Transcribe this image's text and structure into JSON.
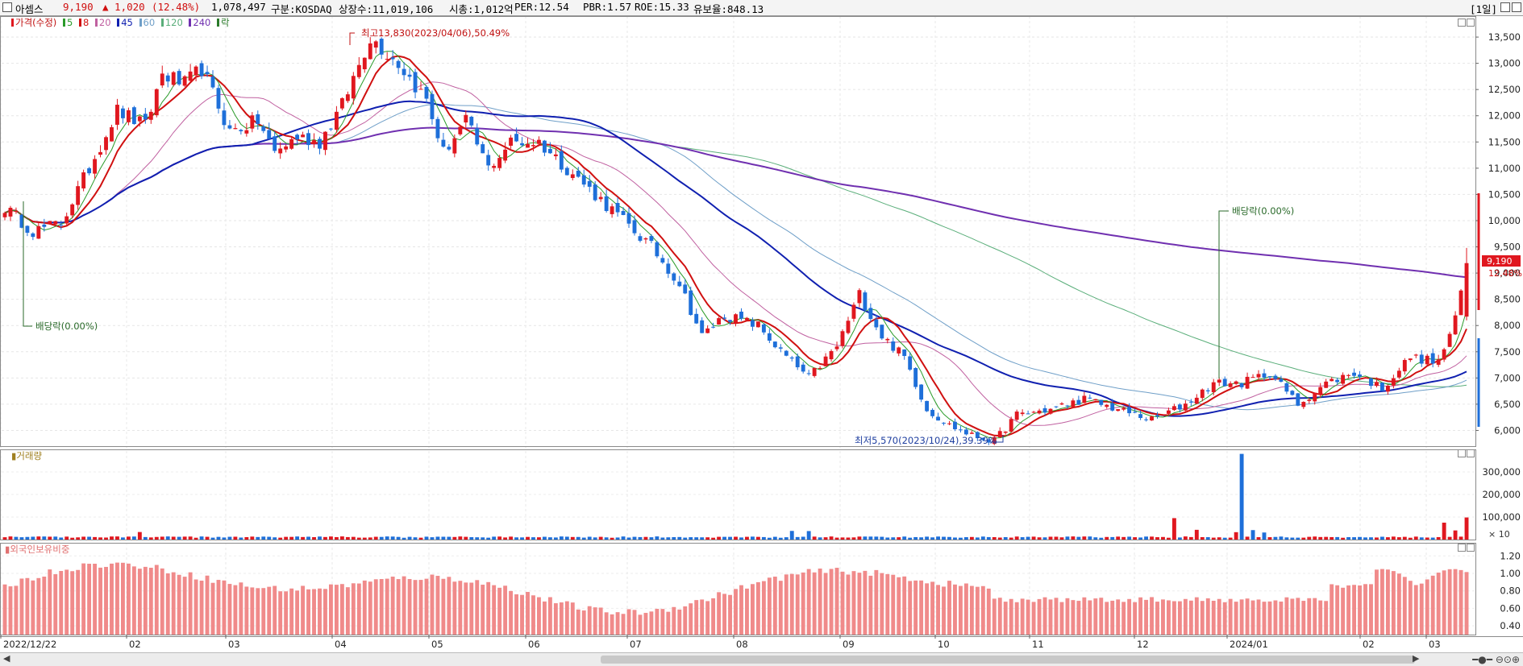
{
  "header": {
    "name": "아셈스",
    "price": "9,190",
    "change": "▲ 1,020",
    "change_pct": "(12.48%)",
    "volume": "1,078,497",
    "market": "구분:KOSDAQ",
    "shares": "상장수:11,019,106",
    "market_cap": "시총:1,012억",
    "per": "PER:12.54",
    "pbr": "PBR:1.57",
    "roe": "ROE:15.33",
    "float_ratio": "유보율:848.13",
    "period": "[1일]"
  },
  "legend": {
    "price": "가격(수정)",
    "ma5": "5",
    "ma8": "8",
    "ma20": "20",
    "ma45": "45",
    "ma60": "60",
    "ma120": "120",
    "ma240": "240",
    "rak": "락"
  },
  "colors": {
    "up": "#e0171f",
    "down": "#1e6fd9",
    "ma5": "#2a9b2a",
    "ma8": "#d01010",
    "ma20": "#c060a0",
    "ma45": "#1020b0",
    "ma60": "#6f9fc8",
    "ma120": "#5aae7a",
    "ma240": "#7030b0",
    "foreign": "#f08a8a"
  },
  "annotations": {
    "high": "최고13,830(2023/04/06),50.49%",
    "low": "최저5,570(2023/10/24),39.39%",
    "div1": "배당락(0.00%)",
    "div2": "배당락(0.00%)",
    "last_price": "9,190",
    "last_pct": "12.48%"
  },
  "panels": {
    "volume_label": "거래량",
    "volume_unit": "× 10",
    "foreign_label": "외국인보유비중"
  },
  "chart_data": {
    "type": "candlestick",
    "price_axis": {
      "ticks": [
        "13,500",
        "13,000",
        "12,500",
        "12,000",
        "11,500",
        "11,000",
        "10,500",
        "10,000",
        "9,500",
        "9,000",
        "8,500",
        "8,000",
        "7,500",
        "7,000",
        "6,500",
        "6,000"
      ],
      "range": [
        5700,
        13900
      ]
    },
    "volume_axis": {
      "ticks": [
        "300,000",
        "200,000",
        "100,000"
      ],
      "range": [
        0,
        400000
      ]
    },
    "foreign_axis": {
      "ticks": [
        "1.20",
        "1.00",
        "0.80",
        "0.60",
        "0.40"
      ],
      "range": [
        0.3,
        1.35
      ]
    },
    "x_labels": [
      "2022/12/22",
      "02",
      "03",
      "04",
      "05",
      "06",
      "07",
      "08",
      "09",
      "10",
      "11",
      "12",
      "2024/01",
      "02",
      "03"
    ],
    "close_keypoints": [
      [
        0,
        10250
      ],
      [
        5,
        9800
      ],
      [
        10,
        9950
      ],
      [
        15,
        11000
      ],
      [
        20,
        12100
      ],
      [
        25,
        11800
      ],
      [
        28,
        12800
      ],
      [
        32,
        12600
      ],
      [
        35,
        12900
      ],
      [
        40,
        11700
      ],
      [
        45,
        11900
      ],
      [
        48,
        11300
      ],
      [
        52,
        11600
      ],
      [
        56,
        11500
      ],
      [
        60,
        12200
      ],
      [
        65,
        13500
      ],
      [
        70,
        13000
      ],
      [
        75,
        12300
      ],
      [
        78,
        11300
      ],
      [
        82,
        11900
      ],
      [
        86,
        11000
      ],
      [
        90,
        11500
      ],
      [
        95,
        11500
      ],
      [
        100,
        11000
      ],
      [
        108,
        10200
      ],
      [
        115,
        9500
      ],
      [
        120,
        8800
      ],
      [
        124,
        7800
      ],
      [
        128,
        8200
      ],
      [
        134,
        8000
      ],
      [
        138,
        7500
      ],
      [
        143,
        7000
      ],
      [
        148,
        7600
      ],
      [
        152,
        8600
      ],
      [
        156,
        7800
      ],
      [
        160,
        7400
      ],
      [
        164,
        6400
      ],
      [
        168,
        6100
      ],
      [
        172,
        5900
      ],
      [
        176,
        5800
      ],
      [
        180,
        6300
      ],
      [
        186,
        6400
      ],
      [
        192,
        6600
      ],
      [
        198,
        6400
      ],
      [
        204,
        6200
      ],
      [
        210,
        6500
      ],
      [
        215,
        6900
      ],
      [
        220,
        6900
      ],
      [
        225,
        7100
      ],
      [
        230,
        6500
      ],
      [
        235,
        6900
      ],
      [
        240,
        7100
      ],
      [
        245,
        6800
      ],
      [
        250,
        7400
      ],
      [
        255,
        7300
      ],
      [
        258,
        8100
      ],
      [
        260,
        9190
      ]
    ],
    "high_value": 13830,
    "low_value": 5570
  }
}
